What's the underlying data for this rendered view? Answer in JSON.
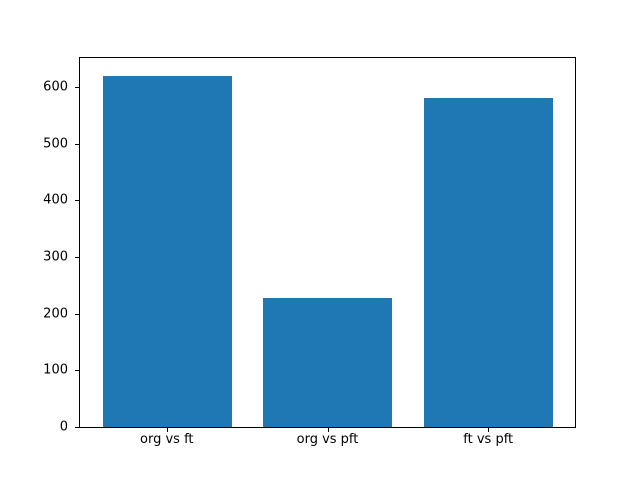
{
  "figure": {
    "background": "#ffffff",
    "spine_color": "#000000"
  },
  "chart_data": {
    "type": "bar",
    "title": "",
    "xlabel": "",
    "ylabel": "",
    "categories": [
      "org vs ft",
      "org vs pft",
      "ft vs pft"
    ],
    "values": [
      620,
      227,
      580
    ],
    "bar_color": "#1f77b4",
    "bar_width": 0.8,
    "xlim": [
      -0.54,
      2.54
    ],
    "ylim": [
      0,
      651
    ],
    "yticks": [
      0,
      100,
      200,
      300,
      400,
      500,
      600
    ],
    "grid": false,
    "legend": "none"
  }
}
